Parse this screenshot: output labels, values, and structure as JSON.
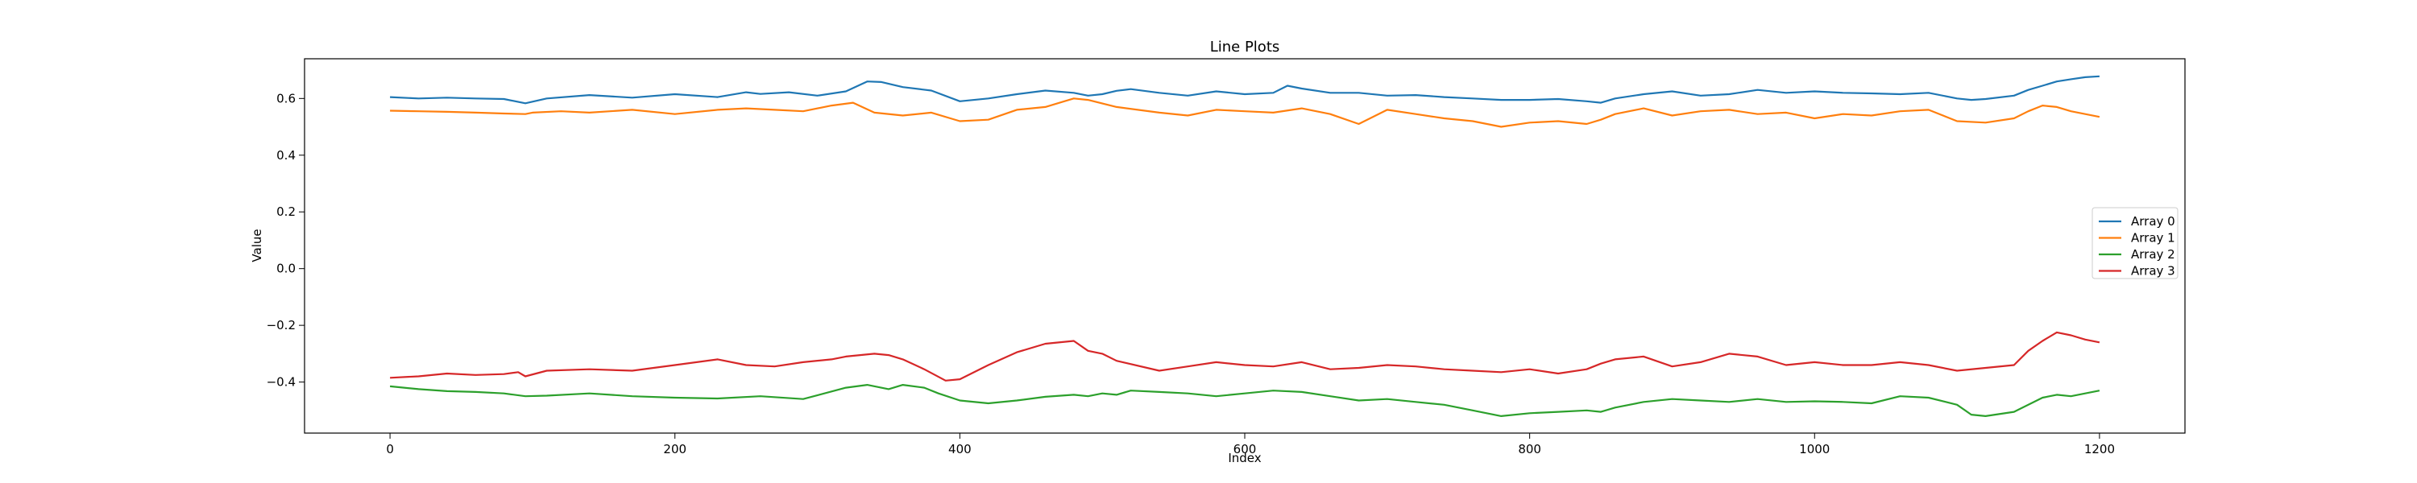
{
  "chart_data": {
    "type": "line",
    "title": "Line Plots",
    "xlabel": "Index",
    "ylabel": "Value",
    "xlim": [
      -60,
      1260
    ],
    "ylim": [
      -0.58,
      0.74
    ],
    "xticks": [
      0,
      200,
      400,
      600,
      800,
      1000,
      1200
    ],
    "yticks": [
      -0.4,
      -0.2,
      0.0,
      0.2,
      0.4,
      0.6
    ],
    "ytick_labels": [
      "−0.4",
      "−0.2",
      "0.0",
      "0.2",
      "0.4",
      "0.6"
    ],
    "grid": false,
    "legend_position": "center-right",
    "series": [
      {
        "name": "Array 0",
        "color": "#1f77b4",
        "x": [
          0,
          20,
          40,
          60,
          80,
          95,
          110,
          140,
          170,
          200,
          230,
          250,
          260,
          280,
          300,
          320,
          335,
          345,
          360,
          380,
          400,
          420,
          440,
          460,
          480,
          490,
          500,
          510,
          520,
          540,
          560,
          580,
          600,
          620,
          630,
          640,
          660,
          680,
          700,
          720,
          740,
          760,
          780,
          800,
          820,
          840,
          850,
          860,
          880,
          900,
          920,
          940,
          960,
          980,
          1000,
          1020,
          1040,
          1060,
          1080,
          1100,
          1110,
          1120,
          1140,
          1150,
          1160,
          1170,
          1180,
          1190,
          1200
        ],
        "y": [
          0.605,
          0.6,
          0.603,
          0.6,
          0.598,
          0.583,
          0.6,
          0.612,
          0.603,
          0.615,
          0.605,
          0.622,
          0.616,
          0.622,
          0.61,
          0.625,
          0.66,
          0.658,
          0.64,
          0.628,
          0.59,
          0.6,
          0.615,
          0.628,
          0.62,
          0.61,
          0.615,
          0.627,
          0.633,
          0.62,
          0.61,
          0.625,
          0.615,
          0.62,
          0.645,
          0.635,
          0.62,
          0.62,
          0.61,
          0.612,
          0.605,
          0.6,
          0.595,
          0.595,
          0.598,
          0.59,
          0.585,
          0.6,
          0.615,
          0.625,
          0.61,
          0.615,
          0.63,
          0.62,
          0.625,
          0.62,
          0.618,
          0.615,
          0.62,
          0.6,
          0.595,
          0.598,
          0.61,
          0.63,
          0.645,
          0.66,
          0.668,
          0.675,
          0.678
        ]
      },
      {
        "name": "Array 1",
        "color": "#ff7f0e",
        "x": [
          0,
          20,
          40,
          60,
          80,
          95,
          100,
          120,
          140,
          170,
          200,
          230,
          250,
          270,
          290,
          310,
          325,
          340,
          360,
          380,
          400,
          420,
          440,
          460,
          480,
          490,
          510,
          540,
          560,
          580,
          600,
          620,
          640,
          660,
          680,
          700,
          720,
          740,
          760,
          780,
          800,
          820,
          840,
          850,
          860,
          880,
          900,
          920,
          940,
          960,
          980,
          1000,
          1020,
          1040,
          1060,
          1080,
          1100,
          1120,
          1140,
          1150,
          1160,
          1170,
          1180,
          1190,
          1200
        ],
        "y": [
          0.557,
          0.555,
          0.553,
          0.55,
          0.547,
          0.545,
          0.55,
          0.555,
          0.55,
          0.56,
          0.545,
          0.56,
          0.565,
          0.56,
          0.555,
          0.575,
          0.585,
          0.55,
          0.54,
          0.55,
          0.52,
          0.525,
          0.56,
          0.57,
          0.6,
          0.595,
          0.57,
          0.55,
          0.54,
          0.56,
          0.555,
          0.55,
          0.565,
          0.545,
          0.51,
          0.56,
          0.545,
          0.53,
          0.52,
          0.5,
          0.515,
          0.52,
          0.51,
          0.525,
          0.545,
          0.565,
          0.54,
          0.555,
          0.56,
          0.545,
          0.55,
          0.53,
          0.545,
          0.54,
          0.555,
          0.56,
          0.52,
          0.515,
          0.53,
          0.555,
          0.575,
          0.57,
          0.555,
          0.545,
          0.535
        ]
      },
      {
        "name": "Array 2",
        "color": "#2ca02c",
        "x": [
          0,
          20,
          40,
          60,
          80,
          95,
          110,
          140,
          170,
          200,
          230,
          260,
          290,
          320,
          335,
          350,
          360,
          375,
          385,
          400,
          420,
          440,
          460,
          480,
          490,
          500,
          510,
          520,
          540,
          560,
          580,
          600,
          620,
          640,
          660,
          680,
          700,
          720,
          740,
          760,
          780,
          800,
          820,
          840,
          850,
          860,
          880,
          900,
          920,
          940,
          960,
          980,
          1000,
          1020,
          1040,
          1060,
          1080,
          1100,
          1110,
          1120,
          1140,
          1160,
          1170,
          1180,
          1190,
          1200
        ],
        "y": [
          -0.415,
          -0.425,
          -0.432,
          -0.435,
          -0.44,
          -0.45,
          -0.448,
          -0.44,
          -0.45,
          -0.455,
          -0.458,
          -0.45,
          -0.46,
          -0.42,
          -0.41,
          -0.425,
          -0.41,
          -0.42,
          -0.44,
          -0.465,
          -0.475,
          -0.465,
          -0.452,
          -0.445,
          -0.45,
          -0.44,
          -0.445,
          -0.43,
          -0.435,
          -0.44,
          -0.45,
          -0.44,
          -0.43,
          -0.435,
          -0.45,
          -0.465,
          -0.46,
          -0.47,
          -0.48,
          -0.5,
          -0.52,
          -0.51,
          -0.505,
          -0.5,
          -0.505,
          -0.49,
          -0.47,
          -0.46,
          -0.465,
          -0.47,
          -0.46,
          -0.47,
          -0.468,
          -0.47,
          -0.475,
          -0.45,
          -0.455,
          -0.48,
          -0.515,
          -0.52,
          -0.505,
          -0.455,
          -0.445,
          -0.45,
          -0.44,
          -0.43
        ]
      },
      {
        "name": "Array 3",
        "color": "#d62728",
        "x": [
          0,
          20,
          40,
          60,
          80,
          90,
          95,
          110,
          140,
          170,
          200,
          230,
          250,
          270,
          290,
          310,
          320,
          330,
          340,
          350,
          360,
          375,
          390,
          400,
          420,
          440,
          460,
          480,
          490,
          500,
          510,
          540,
          560,
          580,
          600,
          620,
          640,
          660,
          680,
          700,
          720,
          740,
          760,
          780,
          800,
          820,
          840,
          850,
          860,
          880,
          900,
          920,
          940,
          960,
          980,
          1000,
          1020,
          1040,
          1060,
          1080,
          1100,
          1120,
          1140,
          1150,
          1160,
          1170,
          1180,
          1190,
          1200
        ],
        "y": [
          -0.385,
          -0.38,
          -0.37,
          -0.375,
          -0.372,
          -0.365,
          -0.38,
          -0.36,
          -0.355,
          -0.36,
          -0.34,
          -0.32,
          -0.34,
          -0.345,
          -0.33,
          -0.32,
          -0.31,
          -0.305,
          -0.3,
          -0.305,
          -0.32,
          -0.355,
          -0.395,
          -0.39,
          -0.34,
          -0.295,
          -0.265,
          -0.255,
          -0.29,
          -0.3,
          -0.325,
          -0.36,
          -0.345,
          -0.33,
          -0.34,
          -0.345,
          -0.33,
          -0.355,
          -0.35,
          -0.34,
          -0.345,
          -0.355,
          -0.36,
          -0.365,
          -0.355,
          -0.37,
          -0.355,
          -0.335,
          -0.32,
          -0.31,
          -0.345,
          -0.33,
          -0.3,
          -0.31,
          -0.34,
          -0.33,
          -0.34,
          -0.34,
          -0.33,
          -0.34,
          -0.36,
          -0.35,
          -0.34,
          -0.29,
          -0.255,
          -0.225,
          -0.235,
          -0.25,
          -0.26
        ]
      }
    ]
  }
}
